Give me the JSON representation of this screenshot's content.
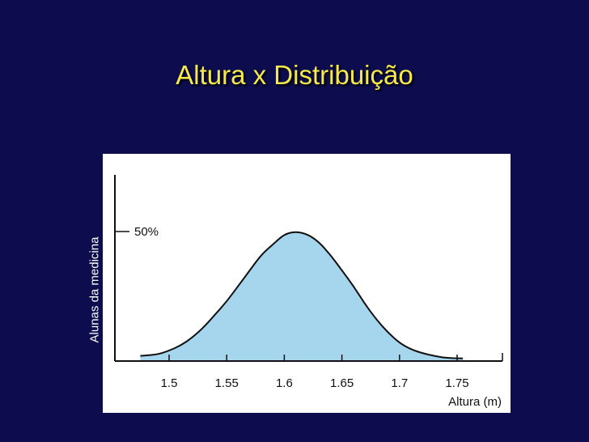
{
  "slide": {
    "title": "Altura x Distribuição"
  },
  "chart_data": {
    "type": "area",
    "title": "Altura x Distribuição",
    "xlabel": "Altura (m)",
    "ylabel": "Alunas da medicina",
    "x_ticks": [
      1.5,
      1.55,
      1.6,
      1.65,
      1.7,
      1.75
    ],
    "x_tick_labels": [
      "1.5",
      "1.55",
      "1.6",
      "1.65",
      "1.7",
      "1.75"
    ],
    "y_ticks": [
      0.5
    ],
    "y_tick_labels": [
      "50%"
    ],
    "xlim": [
      1.45,
      1.79
    ],
    "ylim": [
      0,
      0.6
    ],
    "series": [
      {
        "x": [
          1.475,
          1.49,
          1.5,
          1.51,
          1.52,
          1.53,
          1.54,
          1.55,
          1.56,
          1.57,
          1.58,
          1.59,
          1.6,
          1.61,
          1.62,
          1.63,
          1.64,
          1.65,
          1.66,
          1.67,
          1.68,
          1.69,
          1.7,
          1.71,
          1.72,
          1.73,
          1.74,
          1.755
        ],
        "y": [
          0.02,
          0.025,
          0.04,
          0.06,
          0.09,
          0.13,
          0.18,
          0.23,
          0.29,
          0.35,
          0.41,
          0.45,
          0.49,
          0.5,
          0.49,
          0.46,
          0.41,
          0.35,
          0.29,
          0.22,
          0.16,
          0.11,
          0.07,
          0.045,
          0.03,
          0.02,
          0.012,
          0.01
        ]
      }
    ],
    "fill_color": "#a5d6ee",
    "line_color": "#111111",
    "grid": false
  }
}
